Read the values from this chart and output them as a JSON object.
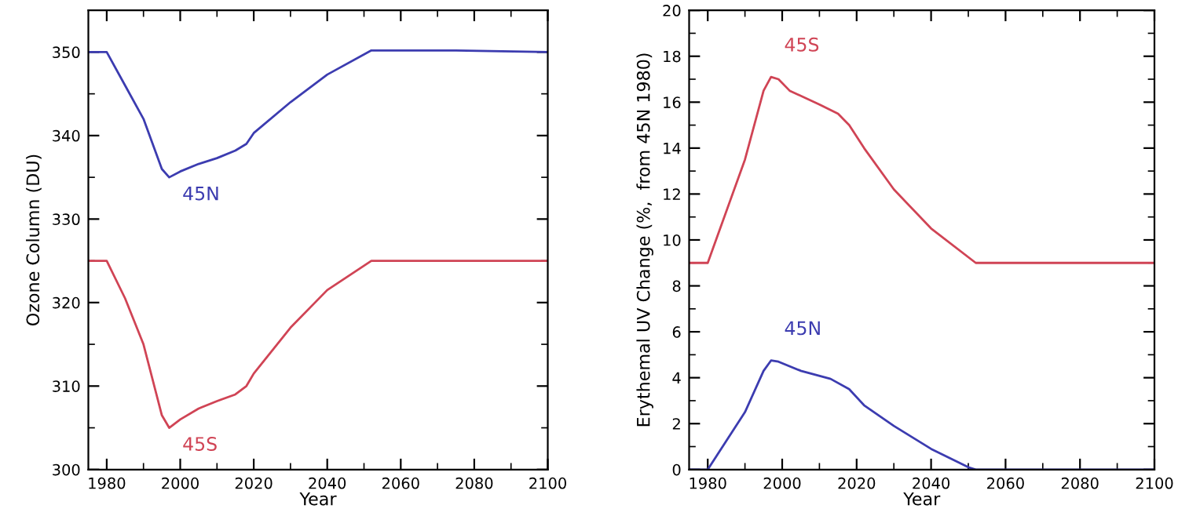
{
  "chart_data": [
    {
      "type": "line",
      "xlabel": "Year",
      "ylabel": "Ozone Column (DU)",
      "xlim": [
        1975,
        2100
      ],
      "xticks": [
        1980,
        2000,
        2020,
        2040,
        2060,
        2080,
        2100
      ],
      "ylim": [
        300,
        355
      ],
      "yticks": [
        300,
        310,
        320,
        330,
        340,
        350
      ],
      "grid": false,
      "legend": false,
      "series": [
        {
          "name": "45N",
          "color": "#3c3cb0",
          "x": [
            1975,
            1980,
            1985,
            1990,
            1995,
            1997,
            2000,
            2005,
            2010,
            2015,
            2018,
            2020,
            2030,
            2040,
            2052,
            2075,
            2100
          ],
          "values": [
            350,
            350,
            346,
            342,
            336,
            335,
            335.7,
            336.6,
            337.3,
            338.2,
            339,
            340.3,
            344,
            347.3,
            350.2,
            350.2,
            350
          ]
        },
        {
          "name": "45S",
          "color": "#d04455",
          "x": [
            1975,
            1980,
            1985,
            1990,
            1995,
            1997,
            2000,
            2005,
            2010,
            2015,
            2018,
            2020,
            2030,
            2040,
            2052,
            2075,
            2100
          ],
          "values": [
            325,
            325,
            320.5,
            315,
            306.5,
            305,
            306,
            307.3,
            308.2,
            309,
            310,
            311.5,
            317,
            321.5,
            325,
            325,
            325
          ]
        }
      ]
    },
    {
      "type": "line",
      "xlabel": "Year",
      "ylabel": "Erythemal UV Change (%,  from 45N 1980)",
      "xlim": [
        1975,
        2100
      ],
      "xticks": [
        1980,
        2000,
        2020,
        2040,
        2060,
        2080,
        2100
      ],
      "ylim": [
        0,
        20
      ],
      "yticks": [
        0,
        2,
        4,
        6,
        8,
        10,
        12,
        14,
        16,
        18,
        20
      ],
      "grid": false,
      "legend": false,
      "series": [
        {
          "name": "45S",
          "color": "#d04455",
          "x": [
            1975,
            1980,
            1990,
            1995,
            1997,
            1999,
            2002,
            2010,
            2015,
            2018,
            2022,
            2030,
            2040,
            2052,
            2100
          ],
          "values": [
            9,
            9,
            13.5,
            16.5,
            17.1,
            17,
            16.5,
            15.9,
            15.5,
            15,
            14,
            12.2,
            10.5,
            9,
            9
          ]
        },
        {
          "name": "45N",
          "color": "#3c3cb0",
          "x": [
            1975,
            1980,
            1990,
            1995,
            1997,
            1999,
            2005,
            2013,
            2018,
            2022,
            2030,
            2040,
            2050,
            2052,
            2100
          ],
          "values": [
            0,
            0,
            2.5,
            4.3,
            4.75,
            4.7,
            4.3,
            3.95,
            3.5,
            2.8,
            1.9,
            0.9,
            0.1,
            0,
            0
          ]
        }
      ]
    }
  ]
}
